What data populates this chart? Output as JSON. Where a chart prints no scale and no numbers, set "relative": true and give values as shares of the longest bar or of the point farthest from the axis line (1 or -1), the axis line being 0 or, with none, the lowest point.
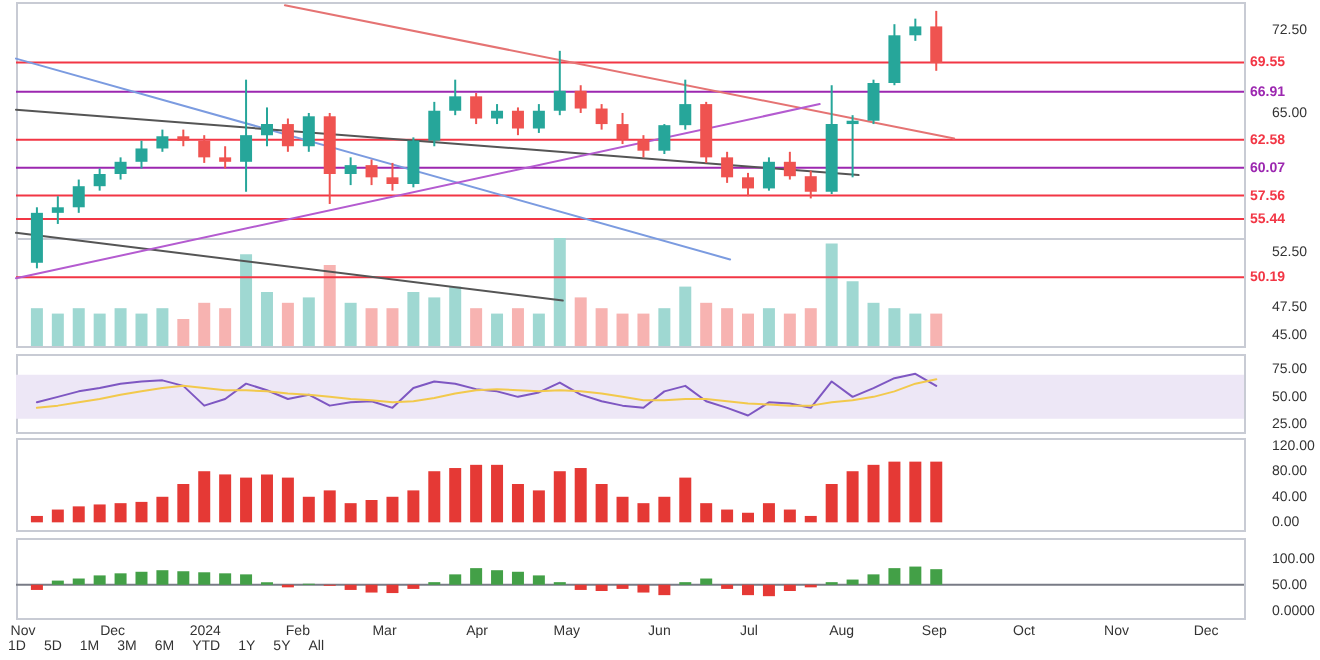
{
  "chart_data": [
    {
      "type": "candlestick",
      "x": [
        "2023-11-06",
        "2023-11-13",
        "2023-11-20",
        "2023-11-27",
        "2023-12-04",
        "2023-12-11",
        "2023-12-18",
        "2023-12-25",
        "2024-01-01",
        "2024-01-08",
        "2024-01-15",
        "2024-01-22",
        "2024-01-29",
        "2024-02-05",
        "2024-02-12",
        "2024-02-19",
        "2024-02-26",
        "2024-03-04",
        "2024-03-11",
        "2024-03-18",
        "2024-03-25",
        "2024-04-01",
        "2024-04-08",
        "2024-04-15",
        "2024-04-22",
        "2024-04-29",
        "2024-05-06",
        "2024-05-13",
        "2024-05-20",
        "2024-05-27",
        "2024-06-03",
        "2024-06-10",
        "2024-06-17",
        "2024-06-24",
        "2024-07-01",
        "2024-07-08",
        "2024-07-15",
        "2024-07-22",
        "2024-07-29",
        "2024-08-05",
        "2024-08-12",
        "2024-08-19",
        "2024-08-26",
        "2024-09-02"
      ],
      "ohlc": [
        [
          51.5,
          56.5,
          51,
          56
        ],
        [
          56,
          57.5,
          55,
          56.5
        ],
        [
          56.5,
          59,
          56,
          58.4
        ],
        [
          58.4,
          60,
          58,
          59.5
        ],
        [
          59.5,
          61,
          59,
          60.6
        ],
        [
          60.6,
          62.5,
          60,
          61.8
        ],
        [
          61.8,
          63.5,
          61.5,
          62.9
        ],
        [
          62.9,
          63.5,
          62,
          62.5
        ],
        [
          62.5,
          63,
          60.5,
          61
        ],
        [
          61,
          62,
          60,
          60.6
        ],
        [
          60.6,
          68,
          57.9,
          63
        ],
        [
          63,
          65.5,
          62,
          64
        ],
        [
          64,
          64.5,
          61.5,
          62
        ],
        [
          62,
          65,
          61.5,
          64.7
        ],
        [
          64.7,
          65,
          56.8,
          59.5
        ],
        [
          59.5,
          61,
          58.5,
          60.3
        ],
        [
          60.3,
          60.8,
          58.5,
          59.2
        ],
        [
          59.2,
          60.5,
          58,
          58.6
        ],
        [
          58.6,
          62.8,
          58.3,
          62.5
        ],
        [
          62.5,
          66,
          62,
          65.2
        ],
        [
          65.2,
          68,
          64.8,
          66.5
        ],
        [
          66.5,
          66.8,
          64,
          64.5
        ],
        [
          64.5,
          65.8,
          64,
          65.2
        ],
        [
          65.2,
          65.5,
          63,
          63.6
        ],
        [
          63.6,
          65.8,
          63.2,
          65.2
        ],
        [
          65.2,
          70.6,
          64.8,
          67
        ],
        [
          67,
          67.5,
          65,
          65.4
        ],
        [
          65.4,
          65.8,
          63.5,
          64
        ],
        [
          64,
          65,
          62.2,
          62.6
        ],
        [
          62.6,
          63,
          61,
          61.6
        ],
        [
          61.6,
          64,
          61.3,
          63.9
        ],
        [
          63.9,
          68,
          63.5,
          65.8
        ],
        [
          65.8,
          66,
          60.5,
          61
        ],
        [
          61,
          61.5,
          58.7,
          59.2
        ],
        [
          59.2,
          59.6,
          57.5,
          58.2
        ],
        [
          58.2,
          61,
          58,
          60.6
        ],
        [
          60.6,
          61.5,
          59,
          59.3
        ],
        [
          59.3,
          59.8,
          57.3,
          57.9
        ],
        [
          57.9,
          67.5,
          57.7,
          64
        ],
        [
          64,
          64.8,
          59.2,
          64.3
        ],
        [
          64.3,
          68,
          64,
          67.7
        ],
        [
          67.7,
          73,
          67.5,
          72
        ],
        [
          72,
          73.5,
          71.5,
          72.8
        ],
        [
          72.8,
          74.2,
          68.8,
          69.5
        ]
      ],
      "colors": [
        "#26a69a",
        "#26a69a",
        "#26a69a",
        "#26a69a",
        "#26a69a",
        "#26a69a",
        "#26a69a",
        "#ef5350",
        "#ef5350",
        "#ef5350",
        "#26a69a",
        "#26a69a",
        "#ef5350",
        "#26a69a",
        "#ef5350",
        "#26a69a",
        "#ef5350",
        "#ef5350",
        "#26a69a",
        "#26a69a",
        "#26a69a",
        "#ef5350",
        "#26a69a",
        "#ef5350",
        "#26a69a",
        "#26a69a",
        "#ef5350",
        "#ef5350",
        "#ef5350",
        "#ef5350",
        "#26a69a",
        "#26a69a",
        "#ef5350",
        "#ef5350",
        "#ef5350",
        "#26a69a",
        "#ef5350",
        "#ef5350",
        "#26a69a",
        "#26a69a",
        "#26a69a",
        "#26a69a",
        "#26a69a",
        "#ef5350"
      ],
      "series": [
        {
          "type": "line",
          "color": "#e57373",
          "x": [
            "2024-01-28",
            "2024-09-08"
          ],
          "values": [
            74.7,
            62.7
          ]
        },
        {
          "type": "line",
          "color": "#7b9be0",
          "x": [
            "2023-10-30",
            "2024-06-25"
          ],
          "values": [
            69.9,
            51.8
          ]
        },
        {
          "type": "line",
          "color": "#555555",
          "x": [
            "2023-10-30",
            "2024-08-07"
          ],
          "values": [
            65.3,
            59.4
          ]
        },
        {
          "type": "line",
          "color": "#555555",
          "x": [
            "2023-10-30",
            "2024-04-30"
          ],
          "values": [
            54.2,
            48.1
          ]
        },
        {
          "type": "line",
          "color": "#b45bd0",
          "x": [
            "2023-10-30",
            "2024-07-25"
          ],
          "values": [
            50.1,
            65.8
          ]
        }
      ],
      "ref_lines": [
        {
          "axis": "y",
          "value": 69.55,
          "label": "69.55",
          "color": "#f23645"
        },
        {
          "axis": "y",
          "value": 66.91,
          "label": "66.91",
          "color": "#9c27b0"
        },
        {
          "axis": "y",
          "value": 62.58,
          "label": "62.58",
          "color": "#f23645"
        },
        {
          "axis": "y",
          "value": 60.07,
          "label": "60.07",
          "color": "#9c27b0"
        },
        {
          "axis": "y",
          "value": 57.56,
          "label": "57.56",
          "color": "#f23645"
        },
        {
          "axis": "y",
          "value": 55.44,
          "label": "55.44",
          "color": "#f23645"
        },
        {
          "axis": "y",
          "value": 50.19,
          "label": "50.19",
          "color": "#f23645"
        }
      ],
      "xlim": [
        "2023-10-30",
        "2024-12-14"
      ],
      "ylim": [
        44,
        75
      ],
      "yticks": [
        {
          "value": 45,
          "label": "45.00"
        },
        {
          "value": 47.5,
          "label": "47.50"
        },
        {
          "value": 52.5,
          "label": "52.50"
        },
        {
          "value": 65,
          "label": "65.00"
        },
        {
          "value": 72.5,
          "label": "72.50"
        }
      ],
      "tick_labels": "y"
    },
    {
      "type": "bar",
      "relative": true,
      "tick_labels": false,
      "xlim": [
        "2023-10-30",
        "2024-12-14"
      ],
      "x": [
        "2023-11-06",
        "2023-11-13",
        "2023-11-20",
        "2023-11-27",
        "2023-12-04",
        "2023-12-11",
        "2023-12-18",
        "2023-12-25",
        "2024-01-01",
        "2024-01-08",
        "2024-01-15",
        "2024-01-22",
        "2024-01-29",
        "2024-02-05",
        "2024-02-12",
        "2024-02-19",
        "2024-02-26",
        "2024-03-04",
        "2024-03-11",
        "2024-03-18",
        "2024-03-25",
        "2024-04-01",
        "2024-04-08",
        "2024-04-15",
        "2024-04-22",
        "2024-04-29",
        "2024-05-06",
        "2024-05-13",
        "2024-05-20",
        "2024-05-27",
        "2024-06-03",
        "2024-06-10",
        "2024-06-17",
        "2024-06-24",
        "2024-07-01",
        "2024-07-08",
        "2024-07-15",
        "2024-07-22",
        "2024-07-29",
        "2024-08-05",
        "2024-08-12",
        "2024-08-19",
        "2024-08-26",
        "2024-09-02"
      ],
      "values": [
        0.35,
        0.3,
        0.35,
        0.3,
        0.35,
        0.3,
        0.35,
        0.25,
        0.4,
        0.35,
        0.85,
        0.5,
        0.4,
        0.45,
        0.75,
        0.4,
        0.35,
        0.35,
        0.5,
        0.45,
        0.55,
        0.35,
        0.3,
        0.35,
        0.3,
        1,
        0.45,
        0.35,
        0.3,
        0.3,
        0.35,
        0.55,
        0.4,
        0.35,
        0.3,
        0.35,
        0.3,
        0.35,
        0.95,
        0.6,
        0.4,
        0.35,
        0.3,
        0.3
      ],
      "colors": [
        "#9fd8d2",
        "#9fd8d2",
        "#9fd8d2",
        "#9fd8d2",
        "#9fd8d2",
        "#9fd8d2",
        "#9fd8d2",
        "#f7b3b1",
        "#f7b3b1",
        "#f7b3b1",
        "#9fd8d2",
        "#9fd8d2",
        "#f7b3b1",
        "#9fd8d2",
        "#f7b3b1",
        "#9fd8d2",
        "#f7b3b1",
        "#f7b3b1",
        "#9fd8d2",
        "#9fd8d2",
        "#9fd8d2",
        "#f7b3b1",
        "#9fd8d2",
        "#f7b3b1",
        "#9fd8d2",
        "#9fd8d2",
        "#f7b3b1",
        "#f7b3b1",
        "#f7b3b1",
        "#f7b3b1",
        "#9fd8d2",
        "#9fd8d2",
        "#f7b3b1",
        "#f7b3b1",
        "#f7b3b1",
        "#9fd8d2",
        "#f7b3b1",
        "#f7b3b1",
        "#9fd8d2",
        "#9fd8d2",
        "#9fd8d2",
        "#9fd8d2",
        "#9fd8d2",
        "#f7b3b1"
      ]
    },
    {
      "type": "line",
      "tick_labels": "y",
      "xlim": [
        "2023-10-30",
        "2024-12-14"
      ],
      "ylim": [
        18,
        89
      ],
      "x": [
        "2023-11-06",
        "2023-11-13",
        "2023-11-20",
        "2023-11-27",
        "2023-12-04",
        "2023-12-11",
        "2023-12-18",
        "2023-12-25",
        "2024-01-01",
        "2024-01-08",
        "2024-01-15",
        "2024-01-22",
        "2024-01-29",
        "2024-02-05",
        "2024-02-12",
        "2024-02-19",
        "2024-02-26",
        "2024-03-04",
        "2024-03-11",
        "2024-03-18",
        "2024-03-25",
        "2024-04-01",
        "2024-04-08",
        "2024-04-15",
        "2024-04-22",
        "2024-04-29",
        "2024-05-06",
        "2024-05-13",
        "2024-05-20",
        "2024-05-27",
        "2024-06-03",
        "2024-06-10",
        "2024-06-17",
        "2024-06-24",
        "2024-07-01",
        "2024-07-08",
        "2024-07-15",
        "2024-07-22",
        "2024-07-29",
        "2024-08-05",
        "2024-08-12",
        "2024-08-19",
        "2024-08-26",
        "2024-09-02"
      ],
      "yticks": [
        {
          "value": 25,
          "label": "25.00"
        },
        {
          "value": 50,
          "label": "50.00"
        },
        {
          "value": 75,
          "label": "75.00"
        }
      ],
      "bands": [
        {
          "axis": "y",
          "from": 30,
          "to": 70,
          "color": "#ede7f6"
        }
      ],
      "series": [
        {
          "color": "#7e57c2",
          "values": [
            45,
            50,
            55,
            58,
            62,
            64,
            65,
            60,
            42,
            48,
            62,
            56,
            48,
            52,
            42,
            45,
            46,
            40,
            58,
            64,
            62,
            57,
            55,
            50,
            54,
            63,
            52,
            46,
            42,
            40,
            55,
            60,
            46,
            40,
            33,
            45,
            44,
            40,
            64,
            50,
            58,
            67,
            71,
            60
          ]
        },
        {
          "color": "#f2c94c",
          "values": [
            40,
            42,
            45,
            48,
            52,
            55,
            58,
            60,
            58,
            56,
            56,
            55,
            53,
            52,
            50,
            48,
            47,
            45,
            46,
            49,
            53,
            56,
            57,
            56,
            55,
            56,
            55,
            53,
            50,
            47,
            47,
            48,
            48,
            46,
            44,
            43,
            42,
            42,
            45,
            47,
            50,
            55,
            62,
            66
          ]
        }
      ]
    },
    {
      "type": "bar",
      "tick_labels": "y",
      "xlim": [
        "2023-10-30",
        "2024-12-14"
      ],
      "ylim": [
        -12,
        132
      ],
      "x": [
        "2023-11-06",
        "2023-11-13",
        "2023-11-20",
        "2023-11-27",
        "2023-12-04",
        "2023-12-11",
        "2023-12-18",
        "2023-12-25",
        "2024-01-01",
        "2024-01-08",
        "2024-01-15",
        "2024-01-22",
        "2024-01-29",
        "2024-02-05",
        "2024-02-12",
        "2024-02-19",
        "2024-02-26",
        "2024-03-04",
        "2024-03-11",
        "2024-03-18",
        "2024-03-25",
        "2024-04-01",
        "2024-04-08",
        "2024-04-15",
        "2024-04-22",
        "2024-04-29",
        "2024-05-06",
        "2024-05-13",
        "2024-05-20",
        "2024-05-27",
        "2024-06-03",
        "2024-06-10",
        "2024-06-17",
        "2024-06-24",
        "2024-07-01",
        "2024-07-08",
        "2024-07-15",
        "2024-07-22",
        "2024-07-29",
        "2024-08-05",
        "2024-08-12",
        "2024-08-19",
        "2024-08-26",
        "2024-09-02"
      ],
      "yticks": [
        {
          "value": 0,
          "label": "0.00"
        },
        {
          "value": 40,
          "label": "40.00"
        },
        {
          "value": 80,
          "label": "80.00"
        },
        {
          "value": 120,
          "label": "120.00"
        }
      ],
      "series": [
        {
          "color": "#e53935",
          "values": [
            10,
            20,
            25,
            28,
            30,
            32,
            40,
            60,
            80,
            75,
            70,
            75,
            70,
            40,
            50,
            30,
            35,
            40,
            50,
            80,
            85,
            90,
            90,
            60,
            50,
            80,
            85,
            60,
            40,
            30,
            40,
            70,
            30,
            20,
            15,
            30,
            20,
            10,
            60,
            80,
            90,
            95,
            95,
            95
          ]
        }
      ]
    },
    {
      "type": "bar",
      "xlim": [
        "2023-10-30",
        "2024-12-14"
      ],
      "ylim": [
        -14,
        140
      ],
      "x": [
        "2023-11-06",
        "2023-11-13",
        "2023-11-20",
        "2023-11-27",
        "2023-12-04",
        "2023-12-11",
        "2023-12-18",
        "2023-12-25",
        "2024-01-01",
        "2024-01-08",
        "2024-01-15",
        "2024-01-22",
        "2024-01-29",
        "2024-02-05",
        "2024-02-12",
        "2024-02-19",
        "2024-02-26",
        "2024-03-04",
        "2024-03-11",
        "2024-03-18",
        "2024-03-25",
        "2024-04-01",
        "2024-04-08",
        "2024-04-15",
        "2024-04-22",
        "2024-04-29",
        "2024-05-06",
        "2024-05-13",
        "2024-05-20",
        "2024-05-27",
        "2024-06-03",
        "2024-06-10",
        "2024-06-17",
        "2024-06-24",
        "2024-07-01",
        "2024-07-08",
        "2024-07-15",
        "2024-07-22",
        "2024-07-29",
        "2024-08-05",
        "2024-08-12",
        "2024-08-19",
        "2024-08-26",
        "2024-09-02"
      ],
      "base": [
        50,
        50,
        50,
        50,
        50,
        50,
        50,
        50,
        50,
        50,
        50,
        50,
        50,
        50,
        50,
        50,
        50,
        50,
        50,
        50,
        50,
        50,
        50,
        50,
        50,
        50,
        50,
        50,
        50,
        50,
        50,
        50,
        50,
        50,
        50,
        50,
        50,
        50,
        50,
        50,
        50,
        50,
        50,
        50
      ],
      "values": [
        -10,
        8,
        12,
        18,
        22,
        25,
        28,
        26,
        24,
        22,
        20,
        5,
        -5,
        2,
        -2,
        -10,
        -15,
        -16,
        -8,
        5,
        20,
        32,
        28,
        25,
        18,
        5,
        -10,
        -12,
        -8,
        -15,
        -20,
        5,
        12,
        -8,
        -20,
        -22,
        -12,
        -5,
        5,
        10,
        20,
        32,
        35,
        30
      ],
      "colors": [
        "#e53935",
        "#43a047",
        "#43a047",
        "#43a047",
        "#43a047",
        "#43a047",
        "#43a047",
        "#43a047",
        "#43a047",
        "#43a047",
        "#43a047",
        "#43a047",
        "#e53935",
        "#43a047",
        "#e53935",
        "#e53935",
        "#e53935",
        "#e53935",
        "#e53935",
        "#43a047",
        "#43a047",
        "#43a047",
        "#43a047",
        "#43a047",
        "#43a047",
        "#43a047",
        "#e53935",
        "#e53935",
        "#e53935",
        "#e53935",
        "#e53935",
        "#43a047",
        "#43a047",
        "#e53935",
        "#e53935",
        "#e53935",
        "#e53935",
        "#e53935",
        "#43a047",
        "#43a047",
        "#43a047",
        "#43a047",
        "#43a047",
        "#43a047"
      ],
      "ref_lines": [
        {
          "axis": "y",
          "value": 50,
          "color": "#787b86"
        }
      ],
      "yticks": [
        {
          "value": 0,
          "label": "0.0000"
        },
        {
          "value": 50,
          "label": "50.00"
        },
        {
          "value": 100,
          "label": "100.00"
        }
      ],
      "xticks": [
        {
          "value": "2023-11-01",
          "label": "Nov"
        },
        {
          "value": "2023-12-01",
          "label": "Dec"
        },
        {
          "value": "2024-01-01",
          "label": "2024"
        },
        {
          "value": "2024-02-01",
          "label": "Feb"
        },
        {
          "value": "2024-03-01",
          "label": "Mar"
        },
        {
          "value": "2024-04-01",
          "label": "Apr"
        },
        {
          "value": "2024-05-01",
          "label": "May"
        },
        {
          "value": "2024-06-01",
          "label": "Jun"
        },
        {
          "value": "2024-07-01",
          "label": "Jul"
        },
        {
          "value": "2024-08-01",
          "label": "Aug"
        },
        {
          "value": "2024-09-01",
          "label": "Sep"
        },
        {
          "value": "2024-10-01",
          "label": "Oct"
        },
        {
          "value": "2024-11-01",
          "label": "Nov"
        },
        {
          "value": "2024-12-01",
          "label": "Dec"
        }
      ],
      "annotations": [
        "1D",
        "5D",
        "1M",
        "3M",
        "6M",
        "YTD",
        "1Y",
        "5Y",
        "All"
      ]
    }
  ]
}
